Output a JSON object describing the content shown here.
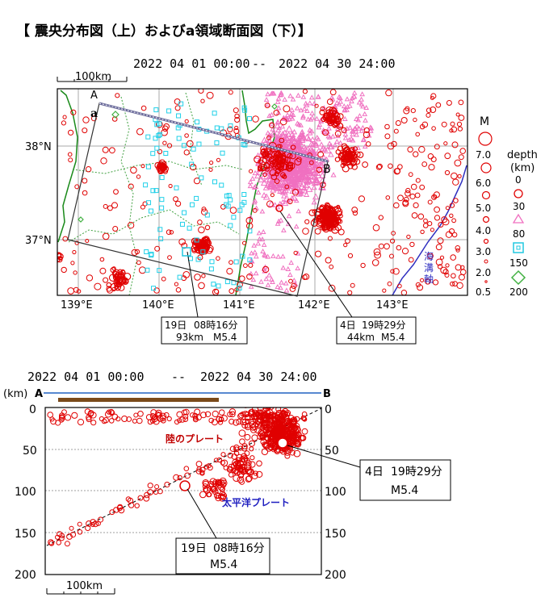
{
  "title": "【 震央分布図（上）およびa領域断面図（下）】",
  "period": {
    "start": "2022 04 01 00:00",
    "sep": "--",
    "end": "2022 04 30 24:00"
  },
  "map": {
    "scale_label": "100km",
    "lat_labels": [
      "38°N",
      "37°N"
    ],
    "lon_labels": [
      "139°E",
      "140°E",
      "141°E",
      "142°E",
      "143°E"
    ],
    "section_labels": {
      "A": "A",
      "B": "B",
      "a": "a"
    },
    "trench_label": "海溝軸",
    "colors": {
      "quake": "#e00000",
      "pink": "#f070c0",
      "cyan": "#20d0e8",
      "green": "#40b040",
      "coast": "#1a8a1a",
      "trench": "#3030c0",
      "grid": "#a0a0a0"
    }
  },
  "legend": {
    "m_title": "M",
    "m_values": [
      "7.0",
      "6.0",
      "5.0",
      "4.0",
      "3.0",
      "2.0",
      "0.5"
    ],
    "depth_title": "depth",
    "depth_unit": "(km)",
    "depth_values": [
      "0",
      "30",
      "80",
      "150",
      "200"
    ]
  },
  "events": [
    {
      "day": "19日",
      "time": "08時16分",
      "depth": "93km",
      "mag": "M5.4"
    },
    {
      "day": "4日",
      "time": "19時29分",
      "depth": "44km",
      "mag": "M5.4"
    }
  ],
  "cross_section": {
    "unit_label": "(km)",
    "end_a": "A",
    "end_b": "B",
    "depth_ticks": [
      "0",
      "50",
      "100",
      "150",
      "200"
    ],
    "scale_label": "100km",
    "land_plate": "陸のプレート",
    "pacific_plate": "太平洋プレート",
    "colors": {
      "land": "#c00000",
      "pacific": "#2020c0",
      "blue_line": "#2060c0",
      "brown_bar": "#7a4a1a"
    }
  }
}
